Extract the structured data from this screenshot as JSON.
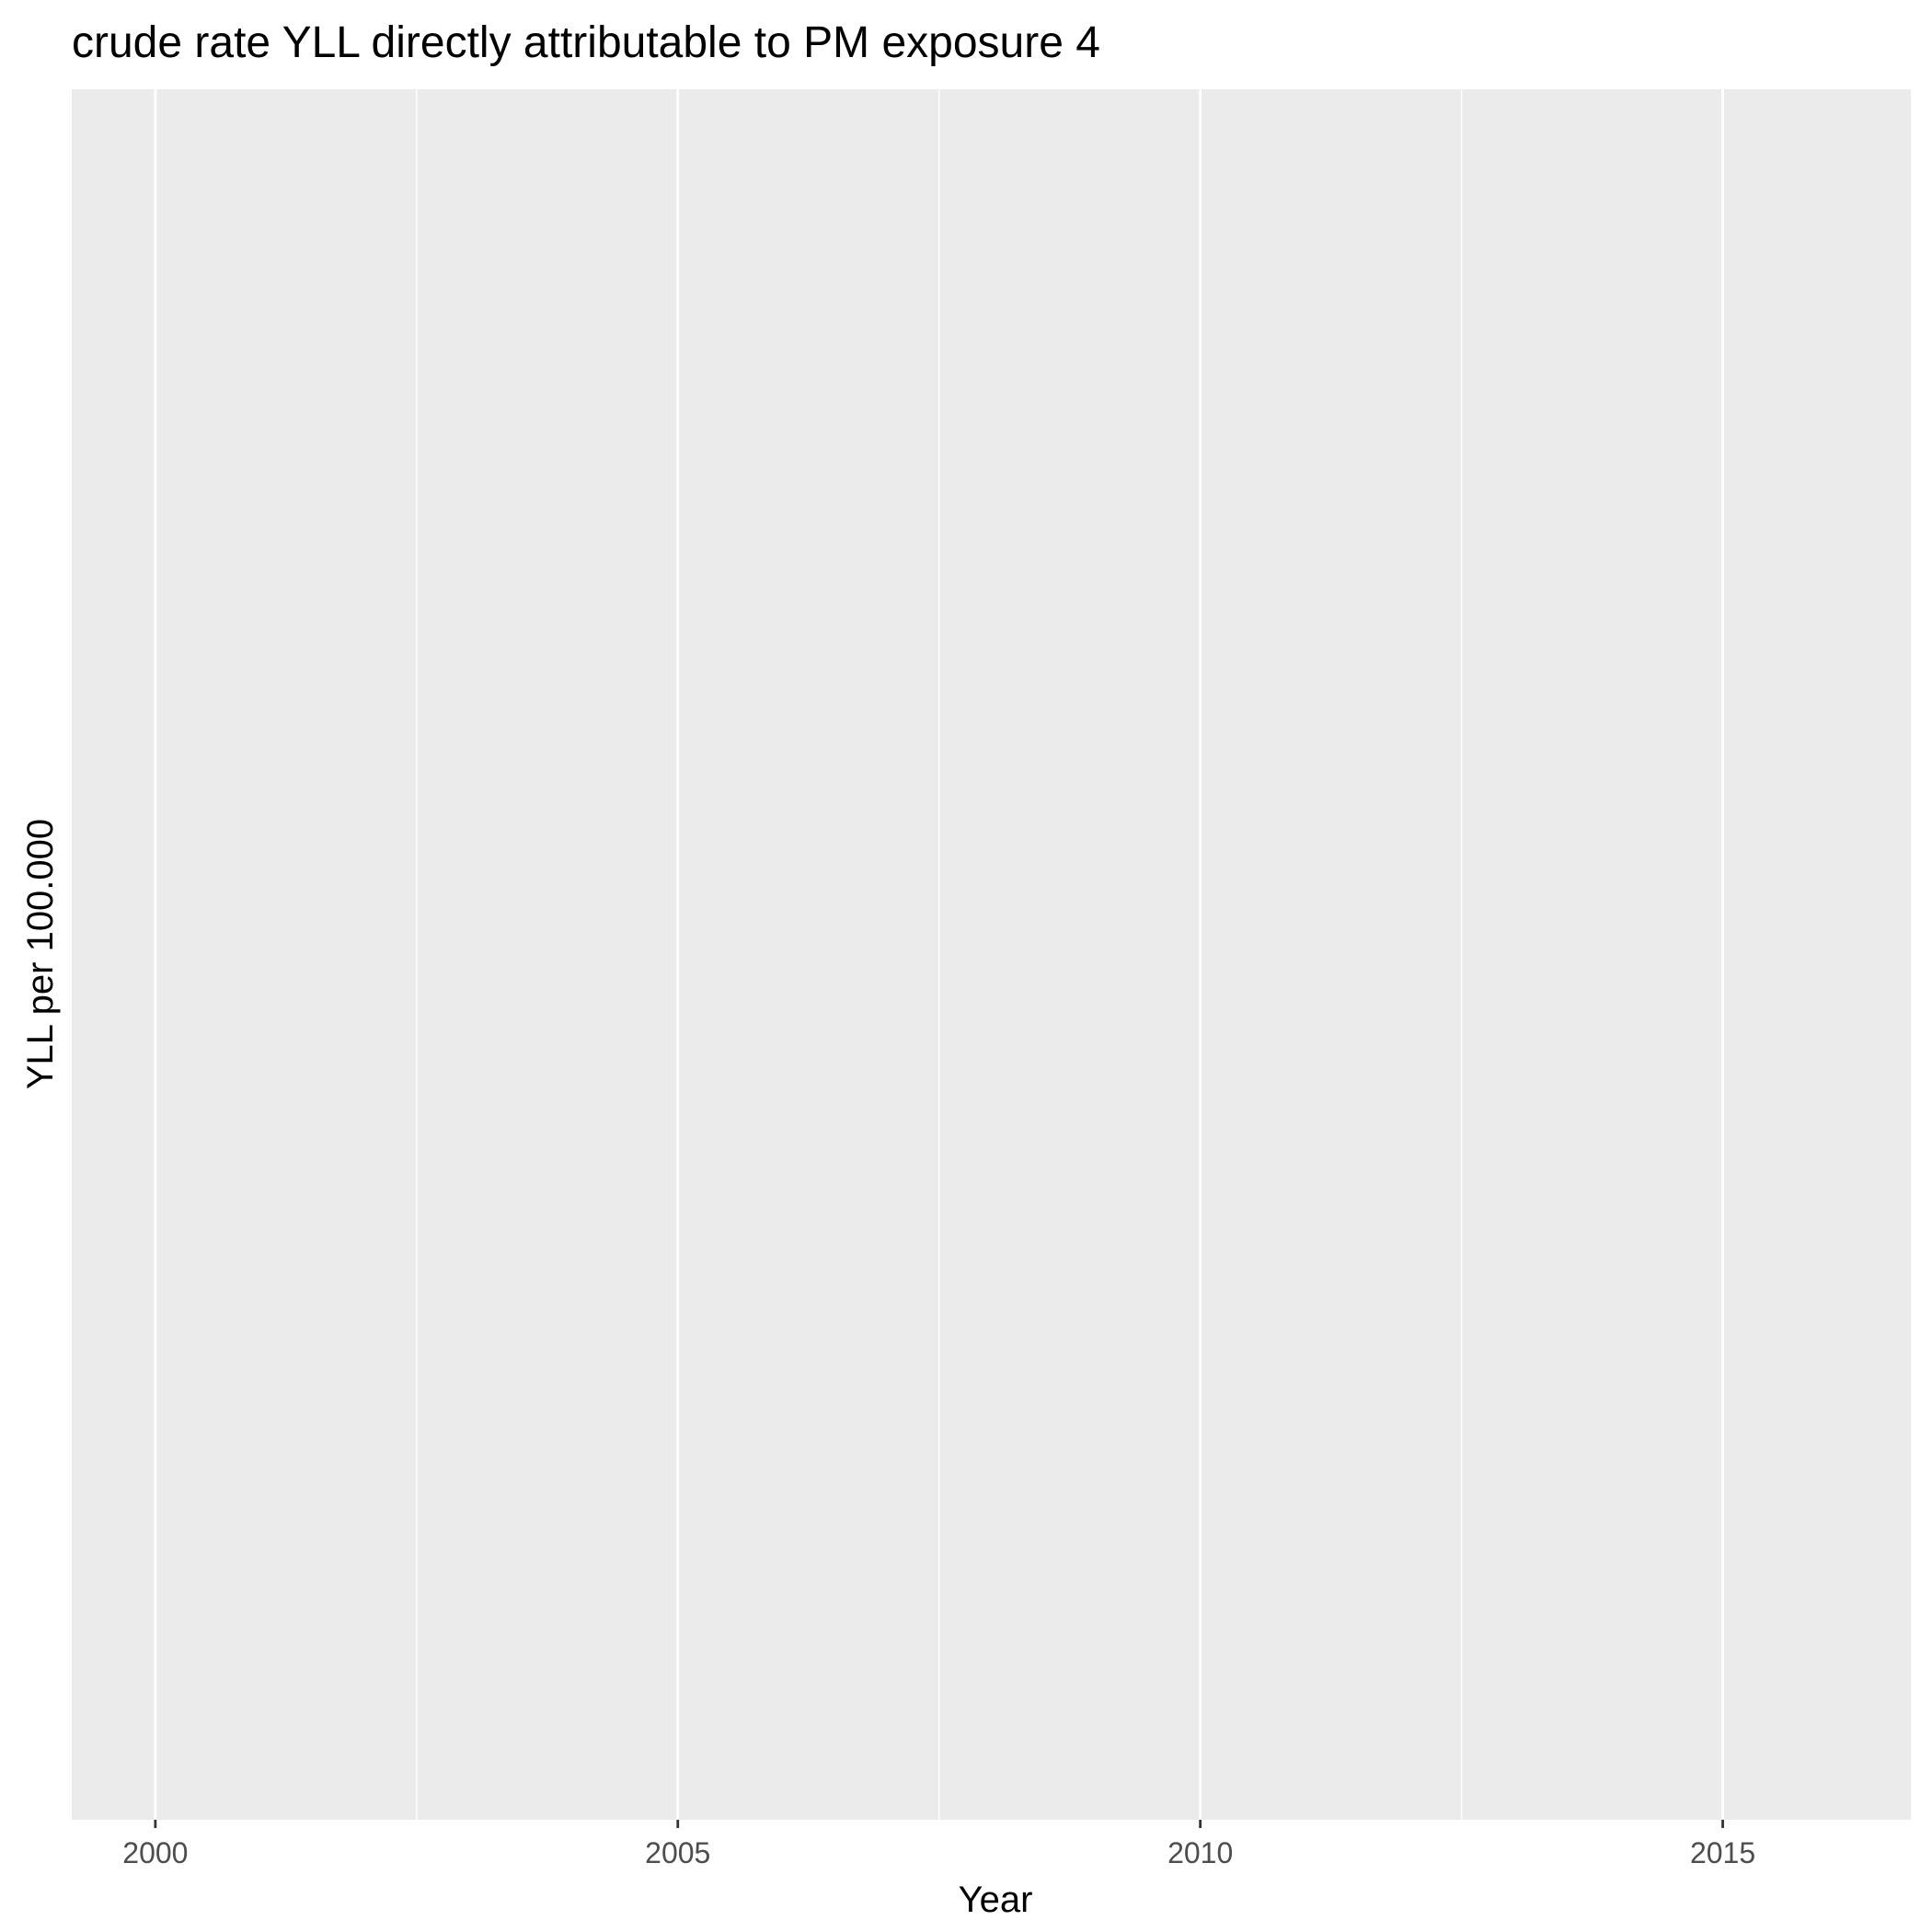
{
  "chart_data": {
    "type": "line",
    "title": "crude rate YLL directly attributable to PM exposure 4",
    "xlabel": "Year",
    "ylabel": "YLL per 100.000",
    "x_ticks": [
      2000,
      2005,
      2010,
      2015
    ],
    "x_tick_labels": [
      "2000",
      "2005",
      "2010",
      "2015"
    ],
    "xlim": [
      1999.2,
      2016.8
    ],
    "y_ticks": [],
    "series": [],
    "grid": true,
    "panel_background": "#ebebeb",
    "grid_color": "#ffffff",
    "legend": "none"
  }
}
